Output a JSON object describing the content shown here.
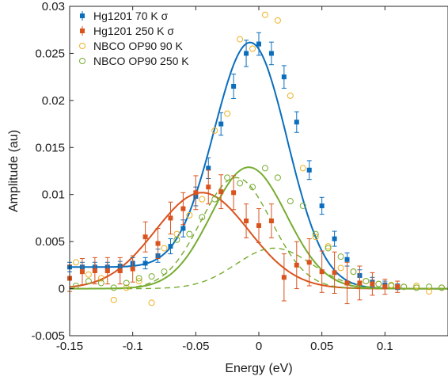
{
  "chart_data": {
    "type": "scatter",
    "title": "",
    "xlabel": "Energy (eV)",
    "ylabel": "Amplitude (au)",
    "xlim": [
      -0.15,
      0.15
    ],
    "ylim": [
      -0.005,
      0.03
    ],
    "xticks": [
      -0.15,
      -0.1,
      -0.05,
      0,
      0.05,
      0.1
    ],
    "xtick_labels": [
      "-0.15",
      "-0.1",
      "-0.05",
      "0",
      "0.05",
      "0.1"
    ],
    "yticks": [
      -0.005,
      0,
      0.005,
      0.01,
      0.015,
      0.02,
      0.025,
      0.03
    ],
    "ytick_labels": [
      "-0.005",
      "0",
      "0.005",
      "0.01",
      "0.015",
      "0.02",
      "0.025",
      "0.03"
    ],
    "grid": false,
    "legend_position": "top-left",
    "colors": {
      "hg70": "#0a6ebd",
      "hg250": "#d9531e",
      "nbco90": "#edb120",
      "nbco250": "#77ac30"
    },
    "series": [
      {
        "name": "Hg1201 70 K σ",
        "marker": "filled-square",
        "color": "#0a6ebd",
        "error_bars": true,
        "points": [
          {
            "x": -0.15,
            "y": 0.0023,
            "err": 0.0005
          },
          {
            "x": -0.14,
            "y": 0.0023,
            "err": 0.0005
          },
          {
            "x": -0.13,
            "y": 0.0023,
            "err": 0.0005
          },
          {
            "x": -0.12,
            "y": 0.0023,
            "err": 0.0005
          },
          {
            "x": -0.11,
            "y": 0.0024,
            "err": 0.0005
          },
          {
            "x": -0.1,
            "y": 0.0027,
            "err": 0.0006
          },
          {
            "x": -0.09,
            "y": 0.0027,
            "err": 0.0006
          },
          {
            "x": -0.08,
            "y": 0.0035,
            "err": 0.0007
          },
          {
            "x": -0.07,
            "y": 0.0045,
            "err": 0.0008
          },
          {
            "x": -0.06,
            "y": 0.0064,
            "err": 0.0009
          },
          {
            "x": -0.05,
            "y": 0.0098,
            "err": 0.001
          },
          {
            "x": -0.04,
            "y": 0.0128,
            "err": 0.0011
          },
          {
            "x": -0.03,
            "y": 0.0175,
            "err": 0.0012
          },
          {
            "x": -0.02,
            "y": 0.0215,
            "err": 0.0013
          },
          {
            "x": -0.01,
            "y": 0.025,
            "err": 0.0014
          },
          {
            "x": 0.0,
            "y": 0.026,
            "err": 0.0012
          },
          {
            "x": 0.01,
            "y": 0.025,
            "err": 0.0012
          },
          {
            "x": 0.02,
            "y": 0.0225,
            "err": 0.0012
          },
          {
            "x": 0.03,
            "y": 0.0177,
            "err": 0.0011
          },
          {
            "x": 0.04,
            "y": 0.0126,
            "err": 0.001
          },
          {
            "x": 0.05,
            "y": 0.0088,
            "err": 0.0009
          },
          {
            "x": 0.06,
            "y": 0.0053,
            "err": 0.0008
          },
          {
            "x": 0.07,
            "y": 0.0031,
            "err": 0.0007
          },
          {
            "x": 0.08,
            "y": 0.0014,
            "err": 0.0006
          },
          {
            "x": 0.09,
            "y": 0.0007,
            "err": 0.0005
          },
          {
            "x": 0.1,
            "y": 0.0004,
            "err": 0.0004
          },
          {
            "x": 0.11,
            "y": 0.0002,
            "err": 0.0003
          }
        ]
      },
      {
        "name": "Hg1201 250 K σ",
        "marker": "filled-square",
        "color": "#d9531e",
        "error_bars": true,
        "points": [
          {
            "x": -0.15,
            "y": 0.0011,
            "err": 0.0014
          },
          {
            "x": -0.14,
            "y": 0.0018,
            "err": 0.0014
          },
          {
            "x": -0.13,
            "y": 0.0019,
            "err": 0.0014
          },
          {
            "x": -0.12,
            "y": 0.0019,
            "err": 0.0014
          },
          {
            "x": -0.11,
            "y": 0.0019,
            "err": 0.0014
          },
          {
            "x": -0.1,
            "y": 0.0021,
            "err": 0.0014
          },
          {
            "x": -0.09,
            "y": 0.0055,
            "err": 0.0016
          },
          {
            "x": -0.08,
            "y": 0.0048,
            "err": 0.0016
          },
          {
            "x": -0.07,
            "y": 0.0075,
            "err": 0.0017
          },
          {
            "x": -0.06,
            "y": 0.0085,
            "err": 0.0017
          },
          {
            "x": -0.05,
            "y": 0.0102,
            "err": 0.0018
          },
          {
            "x": -0.04,
            "y": 0.0108,
            "err": 0.0018
          },
          {
            "x": -0.03,
            "y": 0.0103,
            "err": 0.0018
          },
          {
            "x": -0.02,
            "y": 0.0102,
            "err": 0.0018
          },
          {
            "x": -0.01,
            "y": 0.0072,
            "err": 0.0018
          },
          {
            "x": 0.0,
            "y": 0.0067,
            "err": 0.0018
          },
          {
            "x": 0.01,
            "y": 0.0072,
            "err": 0.0018
          },
          {
            "x": 0.02,
            "y": 0.0012,
            "err": 0.0025
          },
          {
            "x": 0.03,
            "y": 0.0025,
            "err": 0.0025
          },
          {
            "x": 0.04,
            "y": 0.0028,
            "err": 0.0025
          },
          {
            "x": 0.05,
            "y": 0.0018,
            "err": 0.0022
          },
          {
            "x": 0.06,
            "y": 0.0017,
            "err": 0.0022
          },
          {
            "x": 0.07,
            "y": 0.0006,
            "err": 0.0022
          },
          {
            "x": 0.08,
            "y": 0.0006,
            "err": 0.0018
          },
          {
            "x": 0.09,
            "y": 0.0005,
            "err": 0.0012
          },
          {
            "x": 0.1,
            "y": 0.0002,
            "err": 0.0008
          },
          {
            "x": 0.11,
            "y": 0.0002,
            "err": 0.0006
          }
        ]
      },
      {
        "name": "NBCO OP90 90 K",
        "marker": "open-circle",
        "color": "#edb120",
        "error_bars": false,
        "points": [
          {
            "x": -0.145,
            "y": 0.0028
          },
          {
            "x": -0.135,
            "y": 0.0015
          },
          {
            "x": -0.125,
            "y": 0.0011
          },
          {
            "x": -0.115,
            "y": -0.0012
          },
          {
            "x": -0.105,
            "y": 0.0001
          },
          {
            "x": -0.095,
            "y": 0.0008
          },
          {
            "x": -0.085,
            "y": -0.0015
          },
          {
            "x": -0.075,
            "y": 0.0043
          },
          {
            "x": -0.065,
            "y": 0.0058
          },
          {
            "x": -0.055,
            "y": 0.0078
          },
          {
            "x": -0.045,
            "y": 0.0095
          },
          {
            "x": -0.035,
            "y": 0.0168
          },
          {
            "x": -0.025,
            "y": 0.0186
          },
          {
            "x": -0.015,
            "y": 0.0265
          },
          {
            "x": -0.005,
            "y": 0.0255
          },
          {
            "x": 0.005,
            "y": 0.0291
          },
          {
            "x": 0.015,
            "y": 0.0285
          },
          {
            "x": 0.025,
            "y": 0.0205
          },
          {
            "x": 0.035,
            "y": 0.0128
          },
          {
            "x": 0.045,
            "y": 0.0055
          },
          {
            "x": 0.055,
            "y": 0.0045
          },
          {
            "x": 0.065,
            "y": 0.0022
          },
          {
            "x": 0.075,
            "y": 0.0018
          },
          {
            "x": 0.085,
            "y": 0.0008
          },
          {
            "x": 0.095,
            "y": 0.0005
          },
          {
            "x": 0.105,
            "y": 0.0004
          },
          {
            "x": 0.115,
            "y": 0.0002
          },
          {
            "x": 0.125,
            "y": 0.0003
          },
          {
            "x": 0.135,
            "y": -0.0003
          },
          {
            "x": 0.145,
            "y": 0.0001
          }
        ]
      },
      {
        "name": "NBCO OP90 250 K",
        "marker": "open-circle",
        "color": "#77ac30",
        "error_bars": false,
        "points": [
          {
            "x": -0.145,
            "y": 0.0003
          },
          {
            "x": -0.135,
            "y": 0.0008
          },
          {
            "x": -0.125,
            "y": 0.0006
          },
          {
            "x": -0.115,
            "y": 0.0001
          },
          {
            "x": -0.105,
            "y": 0.0006
          },
          {
            "x": -0.095,
            "y": 0.0011
          },
          {
            "x": -0.085,
            "y": 0.0013
          },
          {
            "x": -0.075,
            "y": 0.0018
          },
          {
            "x": -0.065,
            "y": 0.0052
          },
          {
            "x": -0.055,
            "y": 0.0058
          },
          {
            "x": -0.045,
            "y": 0.0076
          },
          {
            "x": -0.035,
            "y": 0.0095
          },
          {
            "x": -0.025,
            "y": 0.0118
          },
          {
            "x": -0.015,
            "y": 0.0112
          },
          {
            "x": -0.005,
            "y": 0.0108
          },
          {
            "x": 0.005,
            "y": 0.0128
          },
          {
            "x": 0.015,
            "y": 0.0118
          },
          {
            "x": 0.025,
            "y": 0.0093
          },
          {
            "x": 0.035,
            "y": 0.0088
          },
          {
            "x": 0.045,
            "y": 0.0058
          },
          {
            "x": 0.055,
            "y": 0.0043
          },
          {
            "x": 0.065,
            "y": 0.0034
          },
          {
            "x": 0.075,
            "y": 0.0018
          },
          {
            "x": 0.085,
            "y": 0.0008
          },
          {
            "x": 0.095,
            "y": 0.0005
          },
          {
            "x": 0.105,
            "y": 0.0003
          },
          {
            "x": 0.115,
            "y": 0.0002
          },
          {
            "x": 0.125,
            "y": 0.0001
          },
          {
            "x": 0.135,
            "y": 0.0002
          },
          {
            "x": 0.145,
            "y": 0.0001
          }
        ]
      }
    ],
    "fits": [
      {
        "series": "Hg1201 70 K σ",
        "style": "solid",
        "color": "#0a6ebd",
        "shape": "gaussian",
        "center": -0.006,
        "amplitude": 0.025,
        "sigma": 0.029,
        "offset": 0.0023,
        "offset_fade": 0.02
      },
      {
        "series": "Hg1201 250 K σ",
        "style": "solid",
        "color": "#d9531e",
        "shape": "gaussian",
        "center": -0.045,
        "amplitude": 0.0102,
        "sigma": 0.037,
        "offset": 0.0,
        "offset_fade": 0.0
      },
      {
        "series": "NBCO OP90 250 K",
        "style": "solid",
        "color": "#77ac30",
        "shape": "gaussian",
        "center": -0.008,
        "amplitude": 0.0129,
        "sigma": 0.03,
        "offset": 0.0,
        "offset_fade": 0.0
      },
      {
        "series": "NBCO OP90 250 K",
        "style": "dashed",
        "color": "#77ac30",
        "shape": "gaussian",
        "center": -0.018,
        "amplitude": 0.0118,
        "sigma": 0.028,
        "offset": 0.0,
        "offset_fade": 0.0
      },
      {
        "series": "NBCO OP90 250 K",
        "style": "dashed",
        "color": "#77ac30",
        "shape": "gaussian",
        "center": 0.012,
        "amplitude": 0.0043,
        "sigma": 0.03,
        "offset": 0.0,
        "offset_fade": 0.0
      }
    ]
  }
}
